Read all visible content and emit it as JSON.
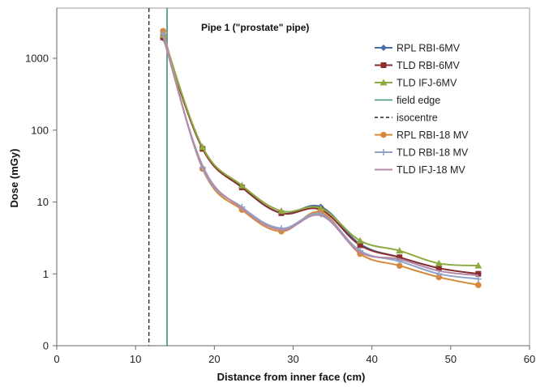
{
  "chart_data": {
    "type": "line",
    "title": "Pipe 1 (\"prostate\" pipe)",
    "xlabel": "Distance from inner face (cm)",
    "ylabel": "Dose (mGy)",
    "y_scale": "log",
    "xlim": [
      0,
      60
    ],
    "ylim": [
      0.1,
      5000
    ],
    "x_ticks": [
      "0",
      "10",
      "20",
      "30",
      "40",
      "50",
      "60"
    ],
    "y_ticks": [
      {
        "value": 1000,
        "label": "1000"
      },
      {
        "value": 100,
        "label": "100"
      },
      {
        "value": 10,
        "label": "10"
      },
      {
        "value": 1,
        "label": "1"
      },
      {
        "value": 0.1,
        "label": "0"
      }
    ],
    "grid": false,
    "legend_position": "top-right",
    "reference_lines": [
      {
        "name": "field edge",
        "x": 14,
        "color": "#3f8f7a",
        "style": "solid"
      },
      {
        "name": "isocentre",
        "x": 11.7,
        "color": "#222222",
        "style": "dashed"
      }
    ],
    "series": [
      {
        "name": "RPL RBI-6MV",
        "color": "#4a6ea8",
        "marker": "diamond",
        "x": [
          13.5,
          18.5,
          23.5,
          28.5,
          33.5,
          38.5,
          43.5,
          48.5,
          53.5
        ],
        "y": [
          1900,
          56,
          16,
          7,
          8.6,
          2.6,
          1.7,
          1.2,
          1.0
        ]
      },
      {
        "name": "TLD RBI-6MV",
        "color": "#8b2e2e",
        "marker": "square",
        "x": [
          13.5,
          18.5,
          23.5,
          28.5,
          33.5,
          38.5,
          43.5,
          48.5,
          53.5
        ],
        "y": [
          1950,
          55,
          16,
          7,
          7.8,
          2.5,
          1.7,
          1.2,
          1.0
        ]
      },
      {
        "name": "TLD IFJ-6MV",
        "color": "#8caa3f",
        "marker": "triangle",
        "x": [
          13.5,
          18.5,
          23.5,
          28.5,
          33.5,
          38.5,
          43.5,
          48.5,
          53.5
        ],
        "y": [
          2100,
          58,
          17,
          7.5,
          8.2,
          2.9,
          2.1,
          1.4,
          1.3
        ]
      },
      {
        "name": "RPL RBI-18 MV",
        "color": "#d6893a",
        "marker": "circle",
        "x": [
          13.5,
          18.5,
          23.5,
          28.5,
          33.5,
          38.5,
          43.5,
          48.5,
          53.5
        ],
        "y": [
          2400,
          29,
          7.8,
          3.9,
          7.2,
          1.9,
          1.3,
          0.9,
          0.7
        ]
      },
      {
        "name": "TLD RBI-18 MV",
        "color": "#8fa3c8",
        "marker": "plus",
        "x": [
          13.5,
          18.5,
          23.5,
          28.5,
          33.5,
          38.5,
          43.5,
          48.5,
          53.5
        ],
        "y": [
          2200,
          30,
          8.5,
          4.3,
          6.8,
          2.1,
          1.5,
          1.0,
          0.85
        ]
      },
      {
        "name": "TLD IFJ-18 MV",
        "color": "#b58aa8",
        "marker": "none",
        "x": [
          13.5,
          18.5,
          23.5,
          28.5,
          33.5,
          38.5,
          43.5,
          48.5,
          53.5
        ],
        "y": [
          2000,
          32,
          8.2,
          4.1,
          6.5,
          2.0,
          1.6,
          1.1,
          0.95
        ]
      }
    ]
  }
}
